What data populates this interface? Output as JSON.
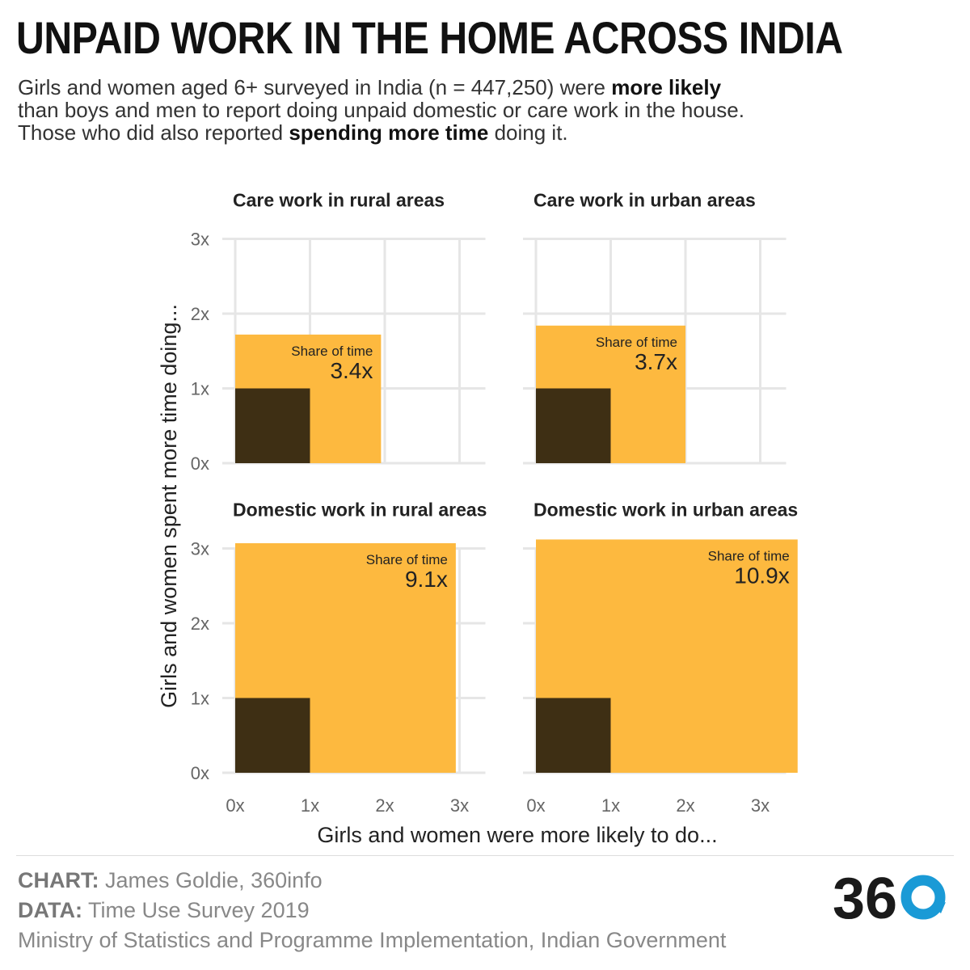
{
  "title": "UNPAID WORK IN THE HOME ACROSS INDIA",
  "subtitle": {
    "line1_pre": "Girls and women aged 6+ surveyed in India (n = 447,250) were ",
    "line1_bold": "more likely",
    "line2": "than boys and men to report doing unpaid domestic or care work in the house.",
    "line3_pre": "Those who did also reported ",
    "line3_bold": "spending more time",
    "line3_post": " doing it."
  },
  "chart_data": {
    "type": "area",
    "xlabel": "Girls and women were more likely to do...",
    "ylabel": "Girls and women spent more time doing...",
    "xlim": [
      0,
      3.5
    ],
    "ylim": [
      0,
      3.2
    ],
    "xticks": [
      "0x",
      "1x",
      "2x",
      "3x"
    ],
    "yticks": [
      "0x",
      "1x",
      "2x",
      "3x"
    ],
    "grid": true,
    "reference_square": {
      "x": 1,
      "y": 1,
      "color": "#3e2f14"
    },
    "fill_color": "#fdb93f",
    "annotation_label": "Share of time",
    "panels": [
      {
        "title": "Care work in rural areas",
        "x": 1.95,
        "y": 1.72,
        "share": "3.4x"
      },
      {
        "title": "Care work in urban areas",
        "x": 2.0,
        "y": 1.84,
        "share": "3.7x"
      },
      {
        "title": "Domestic work in rural areas",
        "x": 2.95,
        "y": 3.07,
        "share": "9.1x"
      },
      {
        "title": "Domestic work in urban areas",
        "x": 3.5,
        "y": 3.12,
        "share": "10.9x"
      }
    ]
  },
  "footer": {
    "chart_label": "CHART:",
    "chart_value": "James Goldie, 360info",
    "data_label": "DATA:",
    "data_value": "Time Use Survey 2019",
    "source_line": "Ministry of Statistics and Programme Implementation, Indian Government",
    "logo_text": "36"
  },
  "colors": {
    "brand_blue": "#1a9ad6",
    "logo_dark": "#1a1a1a"
  }
}
